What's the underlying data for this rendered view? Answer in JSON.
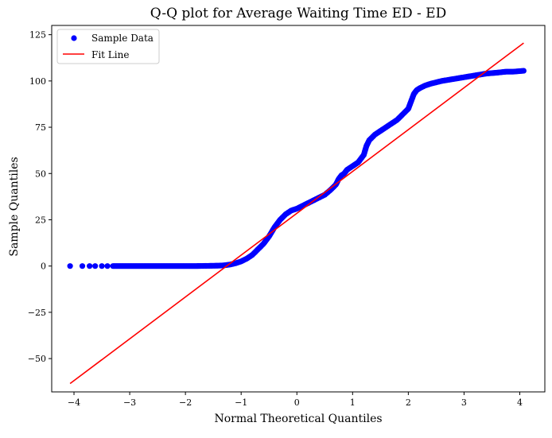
{
  "chart_data": {
    "type": "scatter",
    "title": "Q-Q plot for Average Waiting Time ED - ED",
    "xlabel": "Normal Theoretical Quantiles",
    "ylabel": "Sample Quantiles",
    "xlim": [
      -4.4,
      4.45
    ],
    "ylim": [
      -68,
      130
    ],
    "x_ticks": [
      -4,
      -3,
      -2,
      -1,
      0,
      1,
      2,
      3,
      4
    ],
    "x_tick_labels": [
      "−4",
      "−3",
      "−2",
      "−1",
      "0",
      "1",
      "2",
      "3",
      "4"
    ],
    "y_ticks": [
      -50,
      -25,
      0,
      25,
      50,
      75,
      100,
      125
    ],
    "y_tick_labels": [
      "−50",
      "−25",
      "0",
      "25",
      "50",
      "75",
      "100",
      "125"
    ],
    "grid": false,
    "legend_position": "top-left",
    "series": [
      {
        "name": "Sample Data",
        "kind": "scatter",
        "color": "#0000ff",
        "x": [
          -4.07,
          -3.85,
          -3.72,
          -3.62,
          -3.5,
          -3.4,
          -3.3,
          -3.2,
          -3.0,
          -2.8,
          -2.5,
          -2.2,
          -2.0,
          -1.8,
          -1.6,
          -1.4,
          -1.3,
          -1.2,
          -1.1,
          -1.0,
          -0.9,
          -0.8,
          -0.7,
          -0.6,
          -0.5,
          -0.4,
          -0.3,
          -0.2,
          -0.1,
          0.0,
          0.1,
          0.2,
          0.3,
          0.4,
          0.5,
          0.6,
          0.7,
          0.75,
          0.8,
          0.85,
          0.9,
          1.0,
          1.1,
          1.2,
          1.25,
          1.3,
          1.4,
          1.5,
          1.6,
          1.7,
          1.8,
          1.9,
          2.0,
          2.05,
          2.1,
          2.15,
          2.2,
          2.3,
          2.4,
          2.6,
          2.8,
          3.0,
          3.2,
          3.4,
          3.6,
          3.75,
          3.88,
          4.07
        ],
        "y": [
          0.0,
          0.0,
          0.0,
          0.0,
          0.0,
          0.0,
          0.0,
          0.0,
          0.0,
          0.0,
          0.0,
          0.0,
          0.0,
          0.0,
          0.1,
          0.2,
          0.4,
          0.8,
          1.5,
          2.5,
          4.0,
          6.0,
          9.0,
          12.0,
          16.0,
          21.0,
          25.0,
          28.0,
          30.0,
          31.0,
          32.5,
          34.0,
          35.5,
          37.0,
          38.5,
          41.0,
          44.0,
          47.0,
          49.0,
          50.0,
          52.0,
          54.0,
          56.0,
          60.0,
          65.0,
          68.0,
          71.0,
          73.0,
          75.0,
          77.0,
          79.0,
          82.0,
          85.0,
          89.0,
          93.0,
          95.0,
          96.0,
          97.5,
          98.5,
          100.0,
          101.0,
          102.0,
          103.0,
          104.0,
          104.5,
          105.0,
          105.0,
          105.5
        ]
      },
      {
        "name": "Fit Line",
        "kind": "line",
        "color": "#ff0000",
        "x": [
          -4.07,
          4.07
        ],
        "y": [
          -63.5,
          120.5
        ]
      }
    ]
  }
}
